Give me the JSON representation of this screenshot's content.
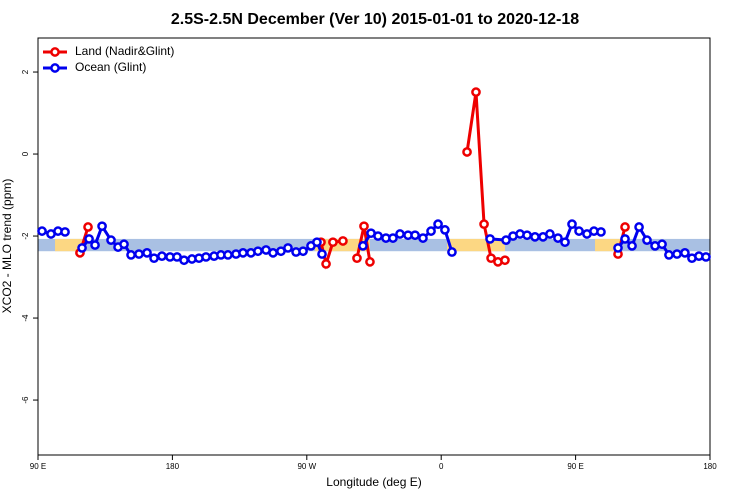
{
  "chart_data": {
    "type": "line",
    "title": "2.5S-2.5N December (Ver 10)   2015-01-01 to 2020-12-18",
    "x_label": "Longitude (deg E)",
    "y_label": "XCO2 - MLO trend (ppm)",
    "xlim": [
      90,
      540
    ],
    "ylim": [
      -7.34,
      2.83
    ],
    "xticks": [
      {
        "value": 90,
        "label": "90 E"
      },
      180,
      {
        "value": 270,
        "label": "90 W"
      },
      {
        "value": 360,
        "label": "0"
      },
      {
        "value": 450,
        "label": "90 E"
      },
      {
        "value": 540,
        "label": "180"
      }
    ],
    "yticks": [
      -6,
      -4,
      -2,
      0,
      2
    ],
    "legend": "top-left",
    "band": {
      "range": [
        -2.37,
        -2.07
      ],
      "color": "#a9c0e3",
      "segments": [
        {
          "from": 101.4,
          "to": 119.5,
          "color": "#fcd783"
        },
        {
          "from": 275.5,
          "to": 312.3,
          "color": "#fcd783"
        },
        {
          "from": 363.9,
          "to": 402.7,
          "color": "#fcd783"
        },
        {
          "from": 463.0,
          "to": 479.7,
          "color": "#fcd783"
        }
      ]
    },
    "series": [
      {
        "name": "Land (Nadir&Glint)",
        "color": "#ee0000",
        "x": [
          118.1,
          123.5,
          null,
          279.5,
          282.9,
          287.5,
          294.2,
          null,
          303.6,
          308.3,
          312.3,
          null,
          377.3,
          383.3,
          388.7,
          393.4,
          398.0,
          402.7,
          null,
          478.4,
          483.1
        ],
        "values": [
          -2.41,
          -1.78,
          null,
          -2.15,
          -2.68,
          -2.15,
          -2.12,
          null,
          -2.54,
          -1.76,
          -2.63,
          null,
          0.05,
          1.51,
          -1.71,
          -2.54,
          -2.63,
          -2.59,
          null,
          -2.44,
          -1.78
        ]
      },
      {
        "name": "Ocean (Glint)",
        "color": "#0000ee",
        "x": [
          92.7,
          98.7,
          103.4,
          108.1,
          null,
          119.5,
          124.2,
          128.2,
          132.9,
          138.9,
          143.6,
          147.6,
          152.3,
          157.6,
          163.0,
          167.7,
          173.0,
          178.4,
          183.1,
          187.8,
          193.1,
          197.8,
          202.5,
          207.9,
          212.5,
          217.2,
          222.6,
          227.3,
          232.6,
          237.3,
          242.7,
          247.4,
          252.7,
          257.4,
          262.8,
          267.5,
          272.8,
          276.8,
          280.2,
          null,
          307.6,
          313.0,
          317.7,
          323.0,
          327.7,
          332.4,
          337.8,
          342.5,
          347.8,
          353.2,
          357.9,
          362.5,
          367.2,
          null,
          392.7,
          403.4,
          408.1,
          412.8,
          417.5,
          422.8,
          428.2,
          432.8,
          438.2,
          442.9,
          447.6,
          452.3,
          457.6,
          462.3,
          467.0,
          null,
          478.4,
          483.1,
          487.8,
          492.5,
          497.8,
          503.2,
          507.9,
          512.5,
          517.9,
          523.2,
          527.9,
          532.6,
          537.3
        ],
        "values": [
          -1.88,
          -1.95,
          -1.88,
          -1.9,
          null,
          -2.29,
          -2.07,
          -2.22,
          -1.76,
          -2.1,
          -2.27,
          -2.2,
          -2.46,
          -2.44,
          -2.41,
          -2.54,
          -2.49,
          -2.51,
          -2.51,
          -2.59,
          -2.56,
          -2.54,
          -2.51,
          -2.49,
          -2.46,
          -2.46,
          -2.44,
          -2.41,
          -2.41,
          -2.37,
          -2.34,
          -2.41,
          -2.37,
          -2.29,
          -2.39,
          -2.37,
          -2.24,
          -2.15,
          -2.44,
          null,
          -2.24,
          -1.93,
          -2.0,
          -2.05,
          -2.05,
          -1.95,
          -1.98,
          -1.98,
          -2.05,
          -1.88,
          -1.71,
          -1.85,
          -2.39,
          null,
          -2.07,
          -2.1,
          -2.0,
          -1.95,
          -1.98,
          -2.02,
          -2.02,
          -1.95,
          -2.05,
          -2.15,
          -1.71,
          -1.88,
          -1.95,
          -1.88,
          -1.9,
          null,
          -2.29,
          -2.07,
          -2.24,
          -1.78,
          -2.1,
          -2.24,
          -2.2,
          -2.46,
          -2.44,
          -2.41,
          -2.54,
          -2.49,
          -2.51
        ]
      }
    ]
  }
}
